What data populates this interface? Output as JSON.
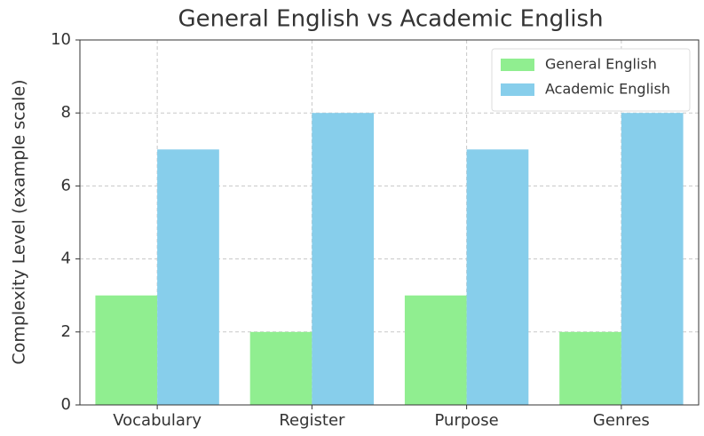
{
  "chart_data": {
    "type": "bar",
    "title": "General English vs Academic English",
    "ylabel": "Complexity Level (example scale)",
    "categories": [
      "Vocabulary",
      "Register",
      "Purpose",
      "Genres"
    ],
    "series": [
      {
        "name": "General English",
        "color": "#90ee90",
        "values": [
          3,
          2,
          3,
          2
        ]
      },
      {
        "name": "Academic English",
        "color": "#87ceeb",
        "values": [
          7,
          8,
          7,
          8
        ]
      }
    ],
    "ylim": [
      0,
      10
    ],
    "yticks": [
      0,
      2,
      4,
      6,
      8,
      10
    ],
    "grid": true,
    "legend": "upper right"
  }
}
